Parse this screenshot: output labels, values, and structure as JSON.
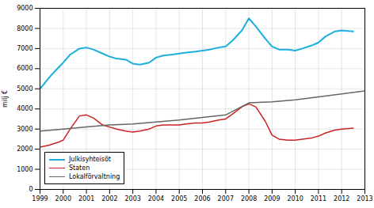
{
  "chart_data": {
    "type": "line",
    "ylabel": "milj €",
    "xlim": [
      1999,
      2013
    ],
    "ylim": [
      0,
      9000
    ],
    "xticks": [
      1999,
      2000,
      2001,
      2002,
      2003,
      2004,
      2005,
      2006,
      2007,
      2008,
      2009,
      2010,
      2011,
      2012,
      2013
    ],
    "yticks": [
      0,
      1000,
      2000,
      3000,
      4000,
      5000,
      6000,
      7000,
      8000,
      9000
    ],
    "grid": true,
    "legend": "lower left",
    "series": [
      {
        "name": "Julkisyhteisöt",
        "color": "#1AAFDE",
        "x": [
          1999,
          1999.5,
          2000,
          2000.3,
          2000.7,
          2001,
          2001.3,
          2001.7,
          2002,
          2002.3,
          2002.7,
          2003,
          2003.3,
          2003.7,
          2004,
          2004.3,
          2004.7,
          2005,
          2005.3,
          2005.7,
          2006,
          2006.3,
          2006.7,
          2007,
          2007.3,
          2007.7,
          2008,
          2008.3,
          2008.7,
          2009,
          2009.3,
          2009.7,
          2010,
          2010.3,
          2010.7,
          2011,
          2011.3,
          2011.7,
          2012,
          2012.5
        ],
        "values": [
          5000,
          5700,
          6300,
          6700,
          7000,
          7050,
          6950,
          6750,
          6600,
          6500,
          6450,
          6250,
          6200,
          6300,
          6550,
          6650,
          6700,
          6750,
          6800,
          6850,
          6900,
          6950,
          7050,
          7100,
          7400,
          7900,
          8500,
          8100,
          7500,
          7100,
          6950,
          6950,
          6900,
          7000,
          7150,
          7300,
          7600,
          7850,
          7900,
          7850
        ]
      },
      {
        "name": "Staten",
        "color": "#CC2222",
        "x": [
          1999,
          1999.4,
          1999.8,
          2000,
          2000.3,
          2000.7,
          2001,
          2001.3,
          2001.7,
          2002,
          2002.3,
          2002.7,
          2003,
          2003.3,
          2003.7,
          2004,
          2004.3,
          2004.7,
          2005,
          2005.3,
          2005.7,
          2006,
          2006.3,
          2006.7,
          2007,
          2007.3,
          2007.7,
          2008,
          2008.3,
          2008.7,
          2009,
          2009.3,
          2009.7,
          2010,
          2010.3,
          2010.7,
          2011,
          2011.3,
          2011.7,
          2012,
          2012.5
        ],
        "values": [
          2100,
          2200,
          2350,
          2450,
          3000,
          3650,
          3700,
          3550,
          3200,
          3100,
          3000,
          2900,
          2850,
          2900,
          3000,
          3150,
          3200,
          3200,
          3200,
          3250,
          3300,
          3300,
          3350,
          3450,
          3500,
          3750,
          4100,
          4250,
          4100,
          3400,
          2700,
          2500,
          2450,
          2450,
          2500,
          2550,
          2650,
          2800,
          2950,
          3000,
          3050
        ]
      },
      {
        "name": "Lokalförvaltning",
        "color": "#666666",
        "x": [
          1999,
          2000,
          2001,
          2002,
          2003,
          2004,
          2005,
          2006,
          2007,
          2008,
          2009,
          2010,
          2011,
          2012,
          2013
        ],
        "values": [
          2900,
          3000,
          3100,
          3200,
          3250,
          3350,
          3450,
          3580,
          3700,
          4300,
          4350,
          4450,
          4600,
          4750,
          4900
        ]
      }
    ]
  }
}
